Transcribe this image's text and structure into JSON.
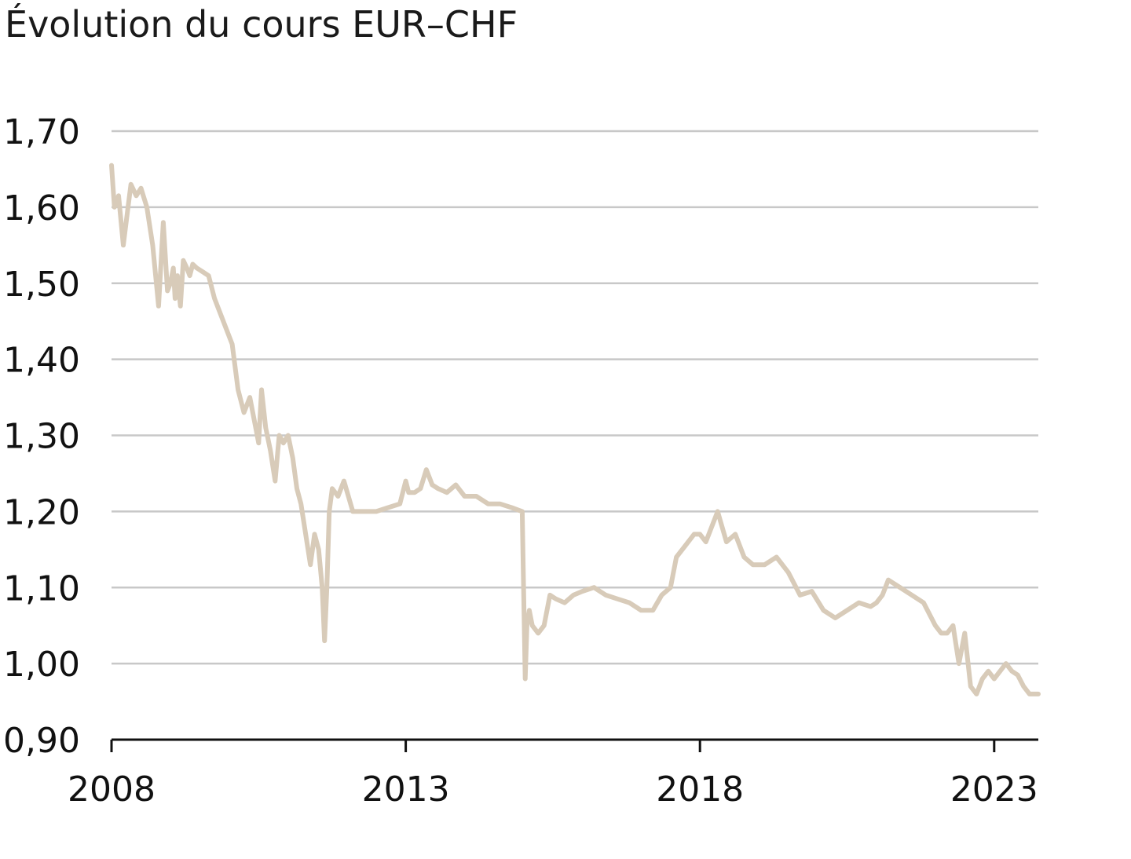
{
  "title": "Évolution du cours EUR–CHF",
  "chart_data": {
    "type": "line",
    "title": "Évolution du cours EUR–CHF",
    "xlabel": "",
    "ylabel": "",
    "xlim": [
      2008.0,
      2023.75
    ],
    "ylim": [
      0.9,
      1.7
    ],
    "x_ticks": [
      2008,
      2013,
      2018,
      2023
    ],
    "x_tick_labels": [
      "2008",
      "2013",
      "2018",
      "2023"
    ],
    "y_ticks": [
      0.9,
      1.0,
      1.1,
      1.2,
      1.3,
      1.4,
      1.5,
      1.6,
      1.7
    ],
    "y_tick_labels": [
      "0,90",
      "1,00",
      "1,10",
      "1,20",
      "1,30",
      "1,40",
      "1,50",
      "1,60",
      "1,70"
    ],
    "grid": "horizontal",
    "line_color": "#d8cbb9",
    "grid_color": "#c8c8c8",
    "axis_color": "#111111",
    "series": [
      {
        "x": [
          2008.0,
          2008.05,
          2008.12,
          2008.2,
          2008.28,
          2008.33,
          2008.42,
          2008.5,
          2008.6,
          2008.7,
          2008.8,
          2008.88,
          2008.95,
          2009.0,
          2009.05,
          2009.08,
          2009.12,
          2009.17,
          2009.22,
          2009.28,
          2009.33,
          2009.38,
          2009.45,
          2009.55,
          2009.65,
          2009.75,
          2009.85,
          2009.95,
          2010.05,
          2010.15,
          2010.25,
          2010.35,
          2010.45,
          2010.5,
          2010.55,
          2010.62,
          2010.7,
          2010.78,
          2010.85,
          2010.92,
          2011.0,
          2011.08,
          2011.15,
          2011.22,
          2011.3,
          2011.38,
          2011.45,
          2011.52,
          2011.58,
          2011.62,
          2011.66,
          2011.68,
          2011.7,
          2011.75,
          2011.85,
          2011.95,
          2012.1,
          2012.3,
          2012.5,
          2012.7,
          2012.9,
          2013.0,
          2013.05,
          2013.15,
          2013.25,
          2013.35,
          2013.45,
          2013.55,
          2013.7,
          2013.85,
          2014.0,
          2014.2,
          2014.4,
          2014.6,
          2014.8,
          2014.98,
          2015.03,
          2015.06,
          2015.1,
          2015.15,
          2015.25,
          2015.35,
          2015.45,
          2015.55,
          2015.7,
          2015.85,
          2016.0,
          2016.2,
          2016.4,
          2016.6,
          2016.8,
          2017.0,
          2017.2,
          2017.35,
          2017.5,
          2017.6,
          2017.75,
          2017.9,
          2018.0,
          2018.1,
          2018.2,
          2018.3,
          2018.45,
          2018.6,
          2018.75,
          2018.9,
          2019.1,
          2019.3,
          2019.5,
          2019.7,
          2019.9,
          2020.1,
          2020.3,
          2020.5,
          2020.7,
          2020.9,
          2021.0,
          2021.1,
          2021.2,
          2021.4,
          2021.6,
          2021.8,
          2022.0,
          2022.1,
          2022.2,
          2022.3,
          2022.4,
          2022.5,
          2022.6,
          2022.7,
          2022.8,
          2022.9,
          2023.0,
          2023.1,
          2023.2,
          2023.3,
          2023.4,
          2023.5,
          2023.6,
          2023.7,
          2023.75
        ],
        "y": [
          1.655,
          1.6,
          1.615,
          1.55,
          1.6,
          1.63,
          1.615,
          1.625,
          1.6,
          1.55,
          1.47,
          1.58,
          1.49,
          1.5,
          1.52,
          1.48,
          1.51,
          1.47,
          1.53,
          1.52,
          1.51,
          1.525,
          1.52,
          1.515,
          1.51,
          1.48,
          1.46,
          1.44,
          1.42,
          1.36,
          1.33,
          1.35,
          1.31,
          1.29,
          1.36,
          1.31,
          1.28,
          1.24,
          1.3,
          1.29,
          1.3,
          1.27,
          1.23,
          1.21,
          1.17,
          1.13,
          1.17,
          1.15,
          1.1,
          1.03,
          1.1,
          1.15,
          1.2,
          1.23,
          1.22,
          1.24,
          1.2,
          1.2,
          1.2,
          1.205,
          1.21,
          1.24,
          1.225,
          1.225,
          1.23,
          1.255,
          1.235,
          1.23,
          1.225,
          1.235,
          1.22,
          1.22,
          1.21,
          1.21,
          1.205,
          1.2,
          0.98,
          1.05,
          1.07,
          1.05,
          1.04,
          1.05,
          1.09,
          1.085,
          1.08,
          1.09,
          1.095,
          1.1,
          1.09,
          1.085,
          1.08,
          1.07,
          1.07,
          1.09,
          1.1,
          1.14,
          1.155,
          1.17,
          1.17,
          1.16,
          1.18,
          1.2,
          1.16,
          1.17,
          1.14,
          1.13,
          1.13,
          1.14,
          1.12,
          1.09,
          1.095,
          1.07,
          1.06,
          1.07,
          1.08,
          1.075,
          1.08,
          1.09,
          1.11,
          1.1,
          1.09,
          1.08,
          1.05,
          1.04,
          1.04,
          1.05,
          1.0,
          1.04,
          0.97,
          0.96,
          0.98,
          0.99,
          0.98,
          0.99,
          1.0,
          0.99,
          0.985,
          0.97,
          0.96,
          0.96,
          0.96
        ]
      }
    ]
  }
}
